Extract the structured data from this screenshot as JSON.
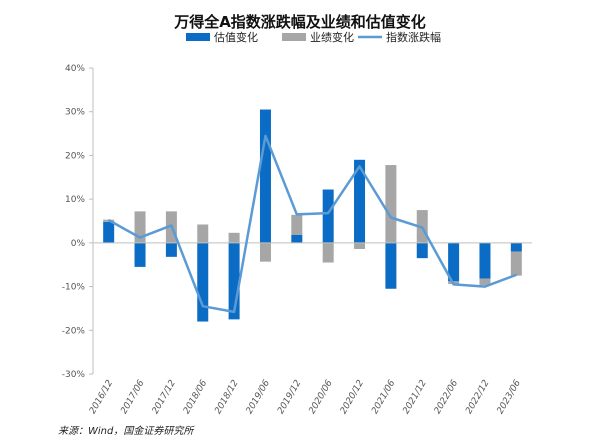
{
  "chart_data": {
    "type": "bar",
    "title": "万得全A指数涨跌幅及业绩和估值变化",
    "categories": [
      "2016/12",
      "2017/06",
      "2017/12",
      "2018/06",
      "2018/12",
      "2019/06",
      "2019/12",
      "2020/06",
      "2020/12",
      "2021/06",
      "2021/12",
      "2022/06",
      "2022/12",
      "2023/06"
    ],
    "series": [
      {
        "name": "估值变化",
        "kind": "bar",
        "color": "#0a6cc4",
        "values": [
          4.8,
          -5.5,
          -3.2,
          -18,
          -17.5,
          30.5,
          1.8,
          12.2,
          19,
          -10.5,
          -3.5,
          -8.8,
          -8.2,
          -2
        ]
      },
      {
        "name": "业绩变化",
        "kind": "bar",
        "color": "#a6a6a6",
        "values": [
          0.5,
          7.2,
          7.2,
          4.2,
          2.3,
          -4.3,
          4.6,
          -4.5,
          -1.4,
          17.8,
          7.5,
          -0.6,
          -1.5,
          -5.5
        ]
      },
      {
        "name": "指数涨跌幅",
        "kind": "line",
        "color": "#5b9bd5",
        "values": [
          5.2,
          1.2,
          4.0,
          -14.5,
          -15.8,
          24.5,
          6.5,
          6.8,
          17.5,
          5.8,
          3.5,
          -9.5,
          -10.0,
          -7.3
        ]
      }
    ],
    "ylim": [
      -30,
      40
    ],
    "yticks": [
      "40%",
      "30%",
      "20%",
      "10%",
      "0%",
      "-10%",
      "-20%",
      "-30%"
    ],
    "ytick_values": [
      40,
      30,
      20,
      10,
      0,
      -10,
      -20,
      -30
    ],
    "grid": false,
    "legend_position": "top"
  },
  "source": "来源：Wind，国金证券研究所"
}
